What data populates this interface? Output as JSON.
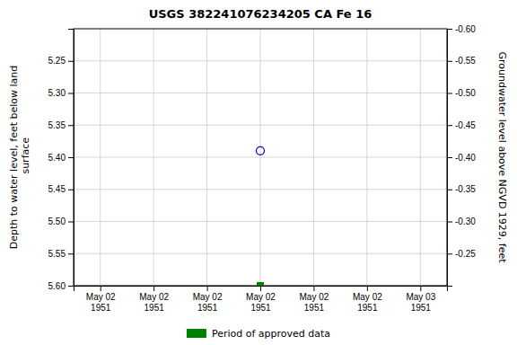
{
  "chart_data": {
    "type": "scatter",
    "title": "USGS 382241076234205 CA Fe  16",
    "y_label": "Depth to water level, feet below land\n surface",
    "y2_label": "Groundwater level above NGVD 1929, feet",
    "categories": [
      "May 02\n1951",
      "May 02\n1951",
      "May 02\n1951",
      "May 02\n1951",
      "May 02\n1951",
      "May 02\n1951",
      "May 03\n1951"
    ],
    "series": [
      {
        "color": "#0000cc",
        "marker": "circle-open",
        "values": [
          null,
          null,
          null,
          5.39,
          null,
          null,
          null
        ]
      },
      {
        "name": "Period of approved data",
        "color": "#008000",
        "marker": "square",
        "values": [
          null,
          null,
          null,
          5.6,
          null,
          null,
          null
        ]
      }
    ],
    "ylim": [
      5.6,
      5.2
    ],
    "yticks": [
      5.25,
      {
        "value": 5.3,
        "label": "5.30"
      },
      5.35,
      {
        "value": 5.4,
        "label": "5.40"
      },
      5.45,
      {
        "value": 5.5,
        "label": "5.50"
      },
      5.55,
      {
        "value": 5.6,
        "label": "5.60"
      }
    ],
    "y2lim": [
      -0.2,
      -0.6
    ],
    "y2ticks": [
      -0.25,
      {
        "value": -0.3,
        "label": "-0.30"
      },
      -0.35,
      {
        "value": -0.4,
        "label": "-0.40"
      },
      -0.45,
      {
        "value": -0.5,
        "label": "-0.50"
      },
      -0.55,
      {
        "value": -0.6,
        "label": "-0.60"
      }
    ],
    "grid": true,
    "legend": "bottom"
  }
}
